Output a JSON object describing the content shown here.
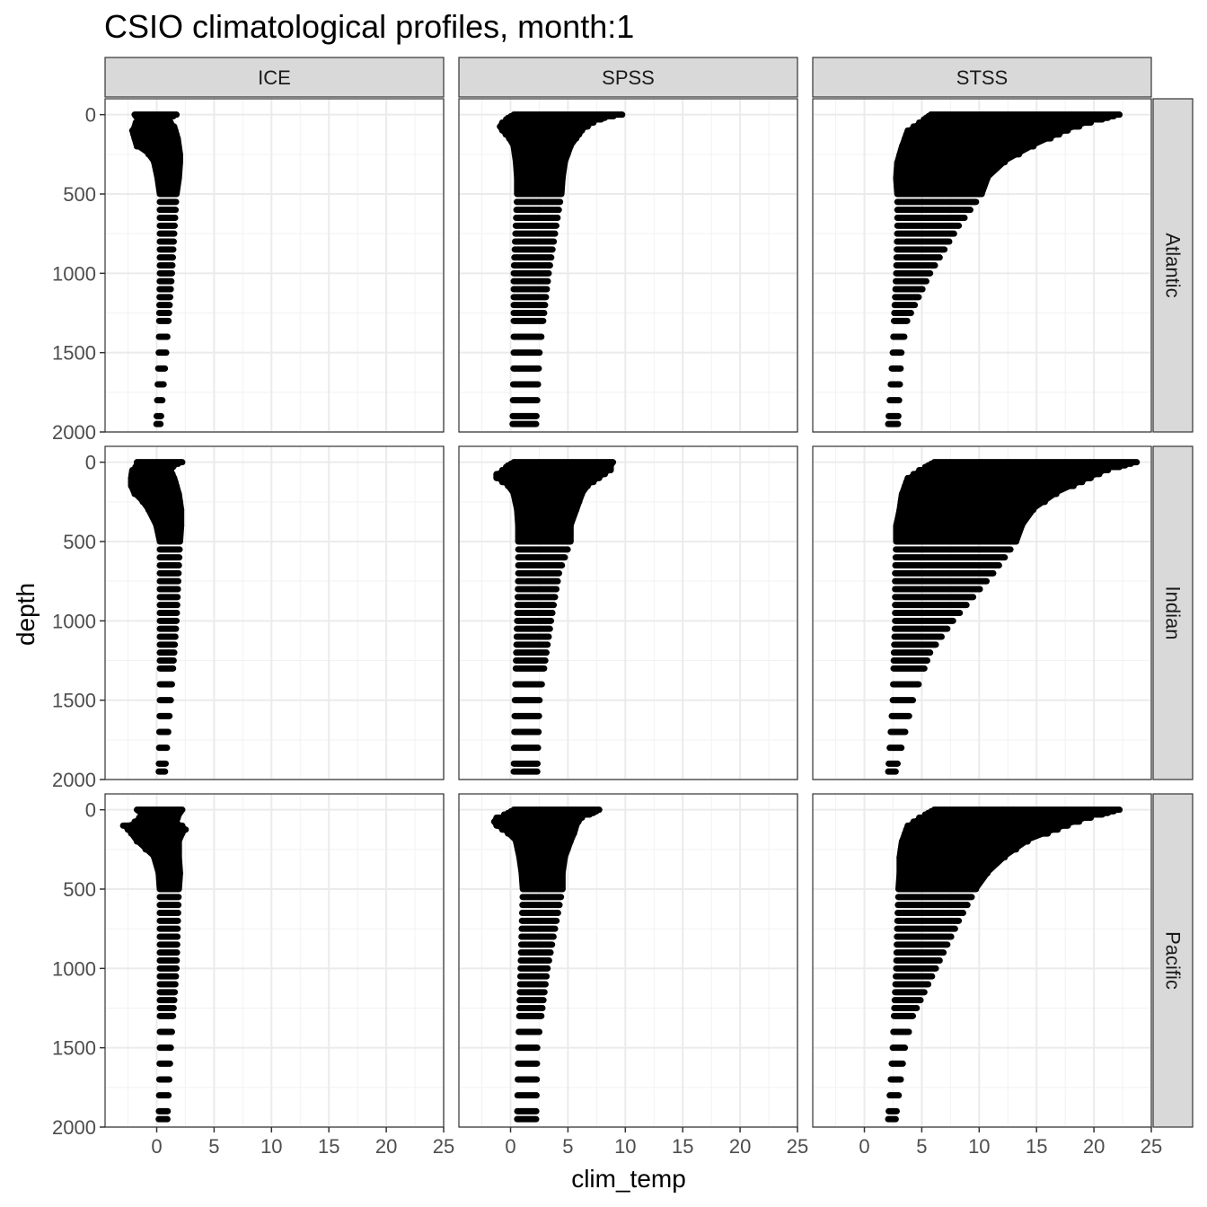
{
  "chart_data": {
    "type": "scatter",
    "title": "CSIO climatological profiles, month:1",
    "xlabel": "clim_temp",
    "ylabel": "depth",
    "xlim": [
      -4.5,
      25
    ],
    "ylim": [
      2000,
      -100
    ],
    "x_ticks": [
      "0",
      "5",
      "10",
      "15",
      "20",
      "25"
    ],
    "y_ticks": [
      "0",
      "500",
      "1000",
      "1500",
      "2000"
    ],
    "grid": true,
    "facet_columns": [
      "ICE",
      "SPSS",
      "STSS"
    ],
    "facet_rows": [
      "Atlantic",
      "Indian",
      "Pacific"
    ],
    "depth_levels": [
      0,
      10,
      20,
      30,
      50,
      75,
      100,
      125,
      150,
      200,
      250,
      300,
      400,
      500,
      550,
      600,
      650,
      700,
      750,
      800,
      850,
      900,
      950,
      1000,
      1050,
      1100,
      1150,
      1200,
      1250,
      1300,
      1400,
      1500,
      1600,
      1700,
      1800,
      1900,
      1950
    ],
    "panels": [
      {
        "row": "Atlantic",
        "col": "ICE",
        "profile": [
          [
            0,
            -2.2,
            2.0
          ],
          [
            30,
            -1.9,
            1.2
          ],
          [
            50,
            -2.1,
            1.5
          ],
          [
            75,
            -2.2,
            1.8
          ],
          [
            100,
            -2.4,
            1.9
          ],
          [
            125,
            -2.3,
            2.0
          ],
          [
            150,
            -2.2,
            2.1
          ],
          [
            200,
            -2.0,
            2.2
          ],
          [
            250,
            -1.0,
            2.3
          ],
          [
            300,
            -0.5,
            2.3
          ],
          [
            400,
            -0.2,
            2.2
          ],
          [
            500,
            0.0,
            2.0
          ],
          [
            1000,
            0.0,
            1.6
          ],
          [
            1500,
            -0.1,
            1.1
          ],
          [
            1950,
            -0.3,
            0.6
          ]
        ]
      },
      {
        "row": "Atlantic",
        "col": "SPSS",
        "profile": [
          [
            0,
            0.0,
            10.0
          ],
          [
            20,
            -0.5,
            8.5
          ],
          [
            50,
            -1.0,
            7.5
          ],
          [
            75,
            -1.2,
            7.0
          ],
          [
            100,
            -1.0,
            6.5
          ],
          [
            150,
            -0.4,
            6.0
          ],
          [
            200,
            0.0,
            5.5
          ],
          [
            300,
            0.2,
            5.0
          ],
          [
            400,
            0.3,
            4.8
          ],
          [
            500,
            0.3,
            4.7
          ],
          [
            1000,
            0.0,
            3.6
          ],
          [
            1500,
            0.0,
            2.8
          ],
          [
            1950,
            -0.1,
            2.5
          ]
        ]
      },
      {
        "row": "Atlantic",
        "col": "STSS",
        "profile": [
          [
            0,
            5.5,
            22.5
          ],
          [
            50,
            4.5,
            20.0
          ],
          [
            100,
            3.5,
            18.0
          ],
          [
            200,
            3.0,
            15.0
          ],
          [
            300,
            2.6,
            12.5
          ],
          [
            400,
            2.5,
            11.0
          ],
          [
            500,
            2.6,
            10.5
          ],
          [
            700,
            2.6,
            8.5
          ],
          [
            1000,
            2.5,
            6.0
          ],
          [
            1300,
            2.3,
            4.0
          ],
          [
            1500,
            2.2,
            3.5
          ],
          [
            1950,
            1.8,
            3.2
          ]
        ]
      },
      {
        "row": "Indian",
        "col": "ICE",
        "profile": [
          [
            0,
            -2.0,
            2.5
          ],
          [
            20,
            -2.0,
            1.8
          ],
          [
            50,
            -2.4,
            1.5
          ],
          [
            100,
            -2.5,
            1.8
          ],
          [
            150,
            -2.5,
            2.0
          ],
          [
            200,
            -2.2,
            2.2
          ],
          [
            250,
            -1.5,
            2.3
          ],
          [
            300,
            -1.0,
            2.4
          ],
          [
            400,
            -0.3,
            2.4
          ],
          [
            500,
            0.0,
            2.3
          ],
          [
            1000,
            0.0,
            2.0
          ],
          [
            1500,
            0.0,
            1.5
          ],
          [
            1950,
            -0.1,
            1.0
          ]
        ]
      },
      {
        "row": "Indian",
        "col": "SPSS",
        "profile": [
          [
            0,
            0.0,
            9.2
          ],
          [
            20,
            -0.5,
            9.0
          ],
          [
            50,
            -1.0,
            9.0
          ],
          [
            75,
            -1.5,
            8.5
          ],
          [
            100,
            -1.5,
            8.0
          ],
          [
            150,
            -0.5,
            7.0
          ],
          [
            200,
            0.0,
            6.5
          ],
          [
            300,
            0.3,
            6.0
          ],
          [
            400,
            0.4,
            5.5
          ],
          [
            500,
            0.4,
            5.5
          ],
          [
            700,
            0.4,
            4.5
          ],
          [
            1000,
            0.3,
            3.8
          ],
          [
            1500,
            0.1,
            2.8
          ],
          [
            1950,
            0.0,
            2.6
          ]
        ]
      },
      {
        "row": "Indian",
        "col": "STSS",
        "profile": [
          [
            0,
            5.8,
            24.0
          ],
          [
            50,
            4.5,
            21.5
          ],
          [
            100,
            3.5,
            20.0
          ],
          [
            200,
            3.0,
            17.0
          ],
          [
            300,
            2.8,
            15.0
          ],
          [
            400,
            2.5,
            14.0
          ],
          [
            500,
            2.5,
            13.5
          ],
          [
            700,
            2.4,
            11.5
          ],
          [
            1000,
            2.4,
            8.0
          ],
          [
            1200,
            2.3,
            6.0
          ],
          [
            1500,
            2.2,
            4.5
          ],
          [
            1950,
            1.8,
            3.0
          ]
        ]
      },
      {
        "row": "Pacific",
        "col": "ICE",
        "profile": [
          [
            0,
            -2.0,
            2.5
          ],
          [
            30,
            -1.5,
            2.2
          ],
          [
            75,
            -2.2,
            2.0
          ],
          [
            100,
            -3.2,
            2.5
          ],
          [
            125,
            -2.8,
            2.8
          ],
          [
            150,
            -2.5,
            2.5
          ],
          [
            200,
            -2.0,
            2.2
          ],
          [
            300,
            -0.5,
            2.2
          ],
          [
            400,
            -0.1,
            2.3
          ],
          [
            500,
            0.0,
            2.2
          ],
          [
            1000,
            0.0,
            2.0
          ],
          [
            1500,
            0.0,
            1.5
          ],
          [
            1950,
            -0.1,
            1.2
          ]
        ]
      },
      {
        "row": "Pacific",
        "col": "SPSS",
        "profile": [
          [
            0,
            0.0,
            8.0
          ],
          [
            20,
            -0.5,
            7.5
          ],
          [
            50,
            -1.5,
            6.5
          ],
          [
            75,
            -1.7,
            6.2
          ],
          [
            100,
            -1.5,
            6.0
          ],
          [
            150,
            -0.5,
            5.8
          ],
          [
            200,
            0.2,
            5.5
          ],
          [
            300,
            0.5,
            5.0
          ],
          [
            400,
            0.7,
            4.8
          ],
          [
            500,
            0.8,
            4.8
          ],
          [
            1000,
            0.6,
            3.5
          ],
          [
            1500,
            0.4,
            2.6
          ],
          [
            1950,
            0.3,
            2.5
          ]
        ]
      },
      {
        "row": "Pacific",
        "col": "STSS",
        "profile": [
          [
            0,
            5.8,
            22.5
          ],
          [
            50,
            4.5,
            20.0
          ],
          [
            100,
            3.5,
            18.0
          ],
          [
            200,
            3.0,
            14.5
          ],
          [
            300,
            2.8,
            12.5
          ],
          [
            400,
            2.8,
            11.0
          ],
          [
            500,
            2.7,
            10.0
          ],
          [
            700,
            2.6,
            8.5
          ],
          [
            1000,
            2.5,
            6.5
          ],
          [
            1300,
            2.3,
            4.5
          ],
          [
            1500,
            2.2,
            3.8
          ],
          [
            1950,
            1.8,
            3.0
          ]
        ]
      }
    ]
  }
}
